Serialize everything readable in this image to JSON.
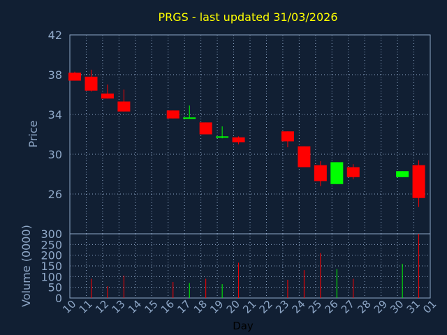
{
  "chart_data": {
    "type": "candlestick",
    "title": "PRGS - last updated 31/03/2026",
    "xlabel": "Day",
    "price_panel": {
      "ylabel": "Price",
      "ylim": [
        22,
        42
      ],
      "yticks": [
        42,
        38,
        34,
        30,
        26
      ],
      "grid": true
    },
    "volume_panel": {
      "ylabel": "Volume (0000)",
      "ylim": [
        0,
        300
      ],
      "yticks": [
        300,
        250,
        200,
        150,
        100,
        50,
        0
      ],
      "grid": true
    },
    "x_ticks": [
      "10",
      "11",
      "12",
      "13",
      "14",
      "15",
      "16",
      "17",
      "18",
      "19",
      "20",
      "21",
      "22",
      "23",
      "24",
      "25",
      "26",
      "27",
      "28",
      "29",
      "30",
      "31",
      "01"
    ],
    "candles": [
      {
        "day": 0.3,
        "open": 38.2,
        "high": 38.3,
        "low": 37.4,
        "close": 37.4,
        "volume": 0
      },
      {
        "day": 1.3,
        "open": 37.8,
        "high": 38.5,
        "low": 36.3,
        "close": 36.4,
        "volume": 90
      },
      {
        "day": 2.3,
        "open": 36.1,
        "high": 37.0,
        "low": 35.6,
        "close": 35.6,
        "volume": 55
      },
      {
        "day": 3.3,
        "open": 35.3,
        "high": 36.5,
        "low": 34.3,
        "close": 34.3,
        "volume": 105
      },
      {
        "day": 6.3,
        "open": 34.4,
        "high": 34.4,
        "low": 33.6,
        "close": 33.6,
        "volume": 75
      },
      {
        "day": 7.3,
        "open": 33.6,
        "high": 34.9,
        "low": 33.6,
        "close": 33.7,
        "volume": 70
      },
      {
        "day": 8.3,
        "open": 33.2,
        "high": 33.2,
        "low": 32.0,
        "close": 32.0,
        "volume": 90
      },
      {
        "day": 9.3,
        "open": 31.7,
        "high": 32.8,
        "low": 31.6,
        "close": 31.8,
        "volume": 65
      },
      {
        "day": 10.3,
        "open": 31.7,
        "high": 31.8,
        "low": 31.0,
        "close": 31.2,
        "volume": 165
      },
      {
        "day": 13.3,
        "open": 32.3,
        "high": 32.3,
        "low": 30.7,
        "close": 31.3,
        "volume": 85
      },
      {
        "day": 14.3,
        "open": 30.8,
        "high": 30.8,
        "low": 28.7,
        "close": 28.7,
        "volume": 130
      },
      {
        "day": 15.3,
        "open": 28.9,
        "high": 29.3,
        "low": 26.8,
        "close": 27.3,
        "volume": 210
      },
      {
        "day": 16.3,
        "open": 27.0,
        "high": 29.2,
        "low": 27.0,
        "close": 29.2,
        "volume": 135
      },
      {
        "day": 17.3,
        "open": 28.7,
        "high": 29.0,
        "low": 27.5,
        "close": 27.7,
        "volume": 90
      },
      {
        "day": 20.3,
        "open": 27.7,
        "high": 28.3,
        "low": 27.7,
        "close": 28.3,
        "volume": 160
      },
      {
        "day": 21.3,
        "open": 28.9,
        "high": 29.4,
        "low": 24.7,
        "close": 25.6,
        "volume": 300
      }
    ],
    "colors": {
      "up": "#00ff00",
      "down": "#ff0000",
      "background": "#111f33",
      "frame": "#8fa8c8",
      "grid": "#8fa8c8",
      "title": "#ffff00"
    }
  }
}
